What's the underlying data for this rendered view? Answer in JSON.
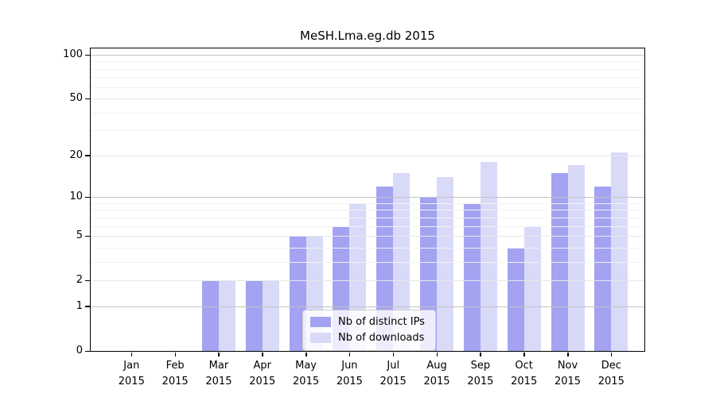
{
  "chart_data": {
    "type": "bar",
    "title": "MeSH.Lma.eg.db 2015",
    "categories": [
      "Jan",
      "Feb",
      "Mar",
      "Apr",
      "May",
      "Jun",
      "Jul",
      "Aug",
      "Sep",
      "Oct",
      "Nov",
      "Dec"
    ],
    "xtick_year": "2015",
    "series": [
      {
        "name": "Nb of distinct IPs",
        "color": "#a3a3f2",
        "values": [
          0,
          0,
          2,
          2,
          5,
          6,
          12,
          10,
          9,
          4,
          15,
          12
        ]
      },
      {
        "name": "Nb of downloads",
        "color": "#d9d9f8",
        "values": [
          0,
          0,
          2,
          2,
          5,
          9,
          15,
          14,
          18,
          6,
          17,
          21
        ]
      }
    ],
    "yscale": "log1p",
    "ylim": [
      0,
      110
    ],
    "yticks": [
      0,
      1,
      2,
      5,
      10,
      20,
      50,
      100
    ],
    "ytick_labels": [
      "0",
      "1",
      "2",
      "5",
      "10",
      "20",
      "50",
      "100"
    ],
    "gridlines": {
      "major": [
        1,
        10,
        100
      ],
      "mid": [
        2,
        5,
        20,
        50
      ],
      "minor": [
        3,
        4,
        6,
        7,
        8,
        9,
        30,
        40,
        60,
        70,
        80,
        90
      ]
    },
    "grid": "horizontal",
    "legend": {
      "position": "inside-bottom-center"
    },
    "colors": {
      "axis": "#000000",
      "grid_major": "#c3c3c3",
      "grid_mid": "#e7e7e7",
      "grid_minor": "#f2f2f2",
      "background": "#ffffff"
    }
  }
}
